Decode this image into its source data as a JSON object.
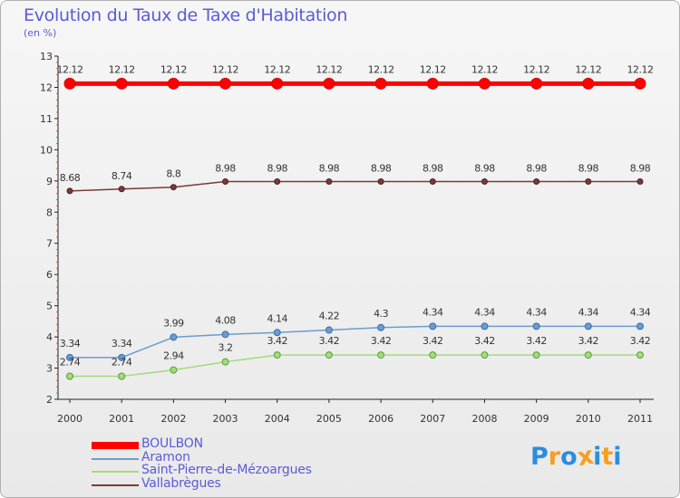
{
  "title": "Evolution du Taux de Taxe d'Habitation",
  "subtitle": "(en %)",
  "logo": {
    "letters": [
      "P",
      "r",
      "o",
      "x",
      "i",
      "t",
      "i"
    ],
    "colors": [
      "#2a8ee0",
      "#f4a020",
      "#2a8ee0",
      "#f4a020",
      "#2a8ee0",
      "#f4a020",
      "#2a8ee0"
    ]
  },
  "chart_data": {
    "type": "line",
    "title": "Evolution du Taux de Taxe d'Habitation",
    "ylabel": "(en %)",
    "xlabel": "",
    "ylim": [
      2,
      13
    ],
    "yticks": [
      2,
      3,
      4,
      5,
      6,
      7,
      8,
      9,
      10,
      11,
      12,
      13
    ],
    "x": [
      "2000",
      "2001",
      "2002",
      "2003",
      "2004",
      "2005",
      "2006",
      "2007",
      "2008",
      "2009",
      "2010",
      "2011"
    ],
    "series": [
      {
        "name": "BOULBON",
        "color": "#ff0000",
        "values": [
          12.12,
          12.12,
          12.12,
          12.12,
          12.12,
          12.12,
          12.12,
          12.12,
          12.12,
          12.12,
          12.12,
          12.12
        ],
        "labels": [
          "12.12",
          "12.12",
          "12.12",
          "12.12",
          "12.12",
          "12.12",
          "12.12",
          "12.12",
          "12.12",
          "12.12",
          "12.12",
          "12.12"
        ]
      },
      {
        "name": "Aramon",
        "color": "#6b9ccf",
        "values": [
          3.34,
          3.34,
          3.99,
          4.08,
          4.14,
          4.22,
          4.3,
          4.34,
          4.34,
          4.34,
          4.34,
          4.34
        ],
        "labels": [
          "3.34",
          "3.34",
          "3.99",
          "4.08",
          "4.14",
          "4.22",
          "4.3",
          "4.34",
          "4.34",
          "4.34",
          "4.34",
          "4.34"
        ]
      },
      {
        "name": "Saint-Pierre-de-Mézoargues",
        "color": "#a2dc7a",
        "values": [
          2.74,
          2.74,
          2.94,
          3.2,
          3.42,
          3.42,
          3.42,
          3.42,
          3.42,
          3.42,
          3.42,
          3.42
        ],
        "labels": [
          "2.74",
          "2.74",
          "2.94",
          "3.2",
          "3.42",
          "3.42",
          "3.42",
          "3.42",
          "3.42",
          "3.42",
          "3.42",
          "3.42"
        ]
      },
      {
        "name": "Vallabrègues",
        "color": "#7a3a3a",
        "values": [
          8.68,
          8.74,
          8.8,
          8.98,
          8.98,
          8.98,
          8.98,
          8.98,
          8.98,
          8.98,
          8.98,
          8.98
        ],
        "labels": [
          "8.68",
          "8.74",
          "8.8",
          "8.98",
          "8.98",
          "8.98",
          "8.98",
          "8.98",
          "8.98",
          "8.98",
          "8.98",
          "8.98"
        ]
      }
    ],
    "legend": "bottom-left",
    "grid": false
  }
}
